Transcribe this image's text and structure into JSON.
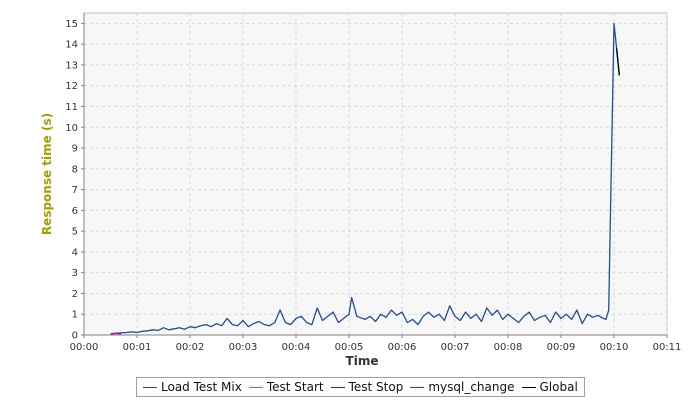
{
  "chart_data": {
    "type": "line",
    "title": "",
    "xlabel": "Time",
    "ylabel": "Response time (s)",
    "xlim": [
      0,
      11
    ],
    "ylim": [
      0,
      15.5
    ],
    "x_ticks": [
      "00:00",
      "00:01",
      "00:02",
      "00:03",
      "00:04",
      "00:05",
      "00:06",
      "00:07",
      "00:08",
      "00:09",
      "00:10",
      "00:11"
    ],
    "y_ticks": [
      0,
      1,
      2,
      3,
      4,
      5,
      6,
      7,
      8,
      9,
      10,
      11,
      12,
      13,
      14,
      15
    ],
    "grid": true,
    "legend_placement": "bottom",
    "colors": {
      "axis_title": "#a0a000",
      "plot_background": "#f7f7f7",
      "grid": "#d9d9d9"
    },
    "series": [
      {
        "name": "Load Test Mix",
        "color": "#1f4e96",
        "x": [
          0.5,
          0.6,
          0.7,
          0.8,
          0.9,
          1.0,
          1.1,
          1.2,
          1.3,
          1.4,
          1.5,
          1.6,
          1.7,
          1.8,
          1.9,
          2.0,
          2.1,
          2.2,
          2.3,
          2.4,
          2.5,
          2.6,
          2.7,
          2.8,
          2.9,
          3.0,
          3.1,
          3.2,
          3.3,
          3.4,
          3.5,
          3.6,
          3.7,
          3.8,
          3.9,
          4.0,
          4.1,
          4.2,
          4.3,
          4.4,
          4.5,
          4.6,
          4.7,
          4.8,
          4.9,
          5.0,
          5.05,
          5.15,
          5.3,
          5.4,
          5.5,
          5.6,
          5.7,
          5.8,
          5.9,
          6.0,
          6.1,
          6.2,
          6.3,
          6.4,
          6.5,
          6.6,
          6.7,
          6.8,
          6.9,
          7.0,
          7.1,
          7.2,
          7.3,
          7.4,
          7.5,
          7.6,
          7.7,
          7.8,
          7.9,
          8.0,
          8.1,
          8.2,
          8.3,
          8.4,
          8.5,
          8.6,
          8.7,
          8.8,
          8.9,
          9.0,
          9.1,
          9.2,
          9.3,
          9.4,
          9.5,
          9.6,
          9.7,
          9.8,
          9.85,
          9.9,
          9.95,
          10.0,
          10.05,
          10.1
        ],
        "y": [
          0.05,
          0.08,
          0.1,
          0.12,
          0.15,
          0.12,
          0.18,
          0.2,
          0.25,
          0.22,
          0.35,
          0.25,
          0.3,
          0.35,
          0.28,
          0.4,
          0.35,
          0.45,
          0.5,
          0.4,
          0.55,
          0.45,
          0.8,
          0.5,
          0.45,
          0.7,
          0.4,
          0.55,
          0.65,
          0.5,
          0.45,
          0.6,
          1.2,
          0.6,
          0.5,
          0.8,
          0.9,
          0.6,
          0.5,
          1.3,
          0.7,
          0.9,
          1.1,
          0.6,
          0.8,
          1.0,
          1.8,
          0.9,
          0.75,
          0.9,
          0.65,
          1.0,
          0.85,
          1.2,
          0.95,
          1.1,
          0.6,
          0.75,
          0.5,
          0.9,
          1.1,
          0.85,
          1.0,
          0.7,
          1.4,
          0.9,
          0.7,
          1.1,
          0.8,
          1.0,
          0.65,
          1.3,
          0.95,
          1.2,
          0.75,
          1.0,
          0.8,
          0.6,
          0.9,
          1.1,
          0.7,
          0.85,
          0.95,
          0.6,
          1.1,
          0.8,
          1.0,
          0.75,
          1.2,
          0.55,
          1.0,
          0.85,
          0.95,
          0.8,
          0.75,
          1.2,
          8.0,
          15.0,
          13.8,
          12.5
        ]
      },
      {
        "name": "Test Start",
        "color": "#33b233",
        "x": [],
        "y": []
      },
      {
        "name": "Test Stop",
        "color": "#cc0000",
        "x": [],
        "y": []
      },
      {
        "name": "mysql_change",
        "color": "#b000b0",
        "x": [
          0.5,
          0.6,
          0.7
        ],
        "y": [
          0.05,
          0.08,
          0.06
        ]
      },
      {
        "name": "Global",
        "color": "#000000",
        "x": [
          10.05,
          10.1
        ],
        "y": [
          13.8,
          12.5
        ]
      }
    ]
  }
}
